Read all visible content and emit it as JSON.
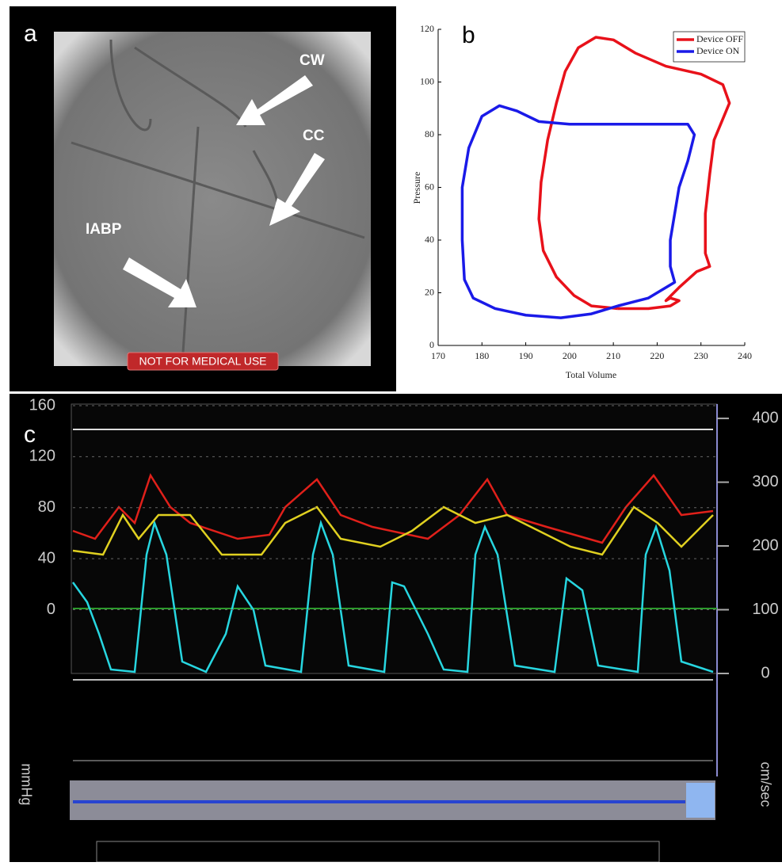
{
  "panel_a": {
    "label": "a",
    "annotations": [
      "CW",
      "CC",
      "IABP"
    ],
    "banner": "NOT FOR MEDICAL USE"
  },
  "chart_data": [
    {
      "type": "line",
      "panel_label": "b",
      "x_label": "Total Volume",
      "y_label": "Pressure",
      "xlim": [
        170,
        240
      ],
      "xticks": [
        170,
        180,
        190,
        200,
        210,
        220,
        230,
        240
      ],
      "ylim": [
        0,
        120
      ],
      "yticks": [
        0,
        20,
        40,
        60,
        80,
        100,
        120
      ],
      "legend": "upper right",
      "series": [
        {
          "name": "Device OFF",
          "color": "#e8111a",
          "x": [
            211,
            218,
            223,
            225,
            223,
            222,
            225,
            229,
            232,
            231,
            231,
            232,
            233,
            235,
            236.5,
            235,
            230,
            222,
            215,
            210,
            206,
            202,
            199,
            197,
            195,
            193.5,
            193,
            194,
            197,
            201,
            205,
            211
          ],
          "values": [
            14,
            14,
            15,
            17,
            18,
            17,
            22,
            28,
            30,
            35,
            50,
            65,
            78,
            86,
            92,
            99,
            103,
            106,
            111,
            116,
            117,
            113,
            104,
            92,
            78,
            62,
            48,
            36,
            26,
            19,
            15,
            14
          ]
        },
        {
          "name": "Device ON",
          "color": "#1a1ae8",
          "x": [
            211,
            218,
            222,
            224,
            223,
            223,
            224,
            225,
            227,
            228.5,
            227,
            220,
            210,
            200,
            193,
            188,
            184,
            180,
            177,
            175.5,
            175.5,
            176,
            178,
            183,
            190,
            198,
            205,
            211
          ],
          "values": [
            15,
            18,
            22,
            24,
            30,
            40,
            50,
            60,
            70,
            80,
            84,
            84,
            84,
            84,
            85,
            89,
            91,
            87,
            75,
            60,
            40,
            25,
            18,
            14,
            11.5,
            10.5,
            12,
            15
          ]
        }
      ]
    },
    {
      "type": "line",
      "panel_label": "c",
      "y_label": "mmHg",
      "y2_label": "cm/sec",
      "ylim": [
        -50,
        160
      ],
      "yticks": [
        0,
        40,
        80,
        120,
        160
      ],
      "y2lim": [
        0,
        420
      ],
      "y2ticks": [
        0,
        100,
        200,
        300,
        400
      ]
    }
  ]
}
